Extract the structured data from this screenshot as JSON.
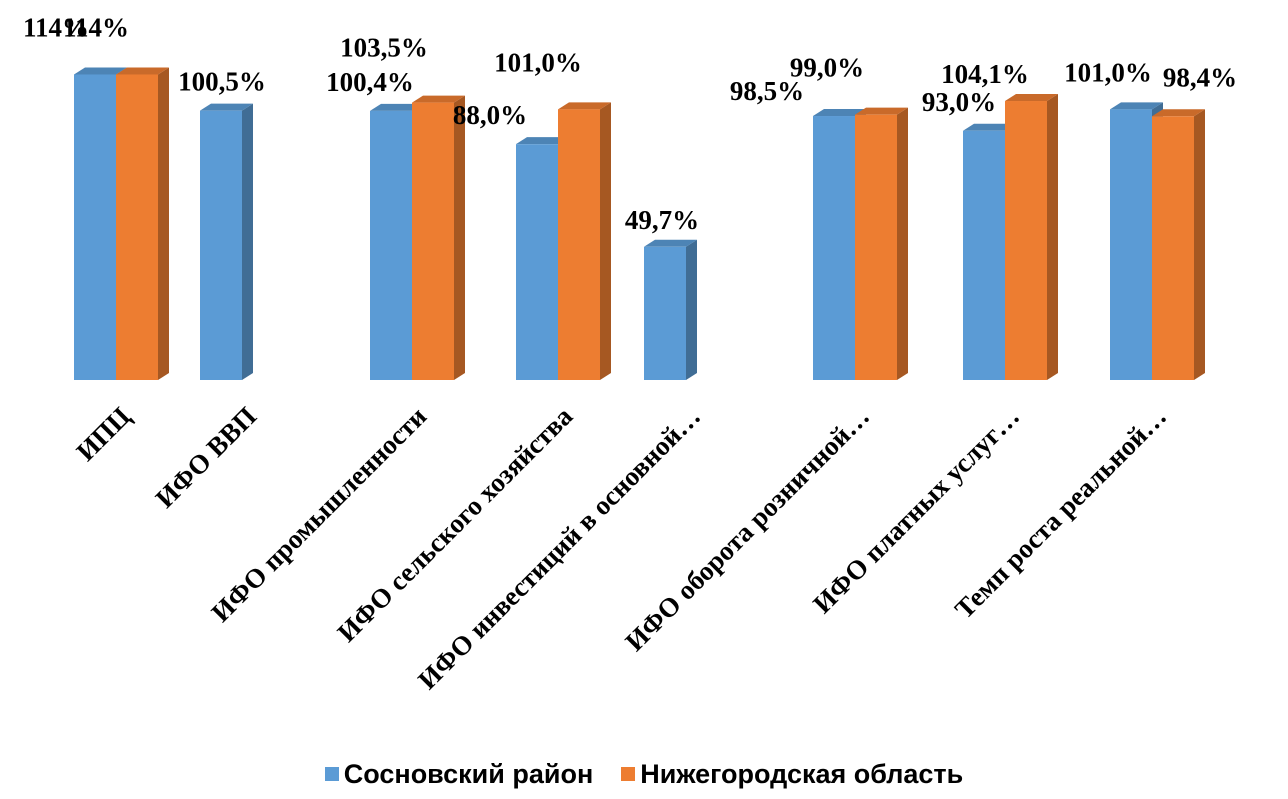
{
  "chart_data": {
    "type": "bar",
    "categories": [
      "ИПЦ",
      "ИФО ВВП",
      "ИФО промышленности",
      "ИФО сельского хозяйства",
      "ИФО инвестиций в основной…",
      "ИФО оборота розничной…",
      "ИФО платных услуг…",
      "Темп роста реальной…"
    ],
    "series": [
      {
        "name": "Сосновский район",
        "color": "#5b9bd5",
        "values": [
          114,
          100.5,
          100.4,
          88.0,
          49.7,
          98.5,
          93.0,
          101.0
        ],
        "labels": [
          "114%",
          "100,5%",
          "100,4%",
          "88,0%",
          "49,7%",
          "98,5%",
          "93,0%",
          "101,0%"
        ]
      },
      {
        "name": "Нижегородская область",
        "color": "#ed7d31",
        "values": [
          114,
          null,
          103.5,
          101.0,
          null,
          99.0,
          104.1,
          98.4
        ],
        "labels": [
          "114%",
          null,
          "103,5%",
          "101,0%",
          null,
          "99,0%",
          "104,1%",
          "98,4%"
        ]
      }
    ],
    "legend_position": "bottom",
    "grid": false,
    "three_d": true
  }
}
